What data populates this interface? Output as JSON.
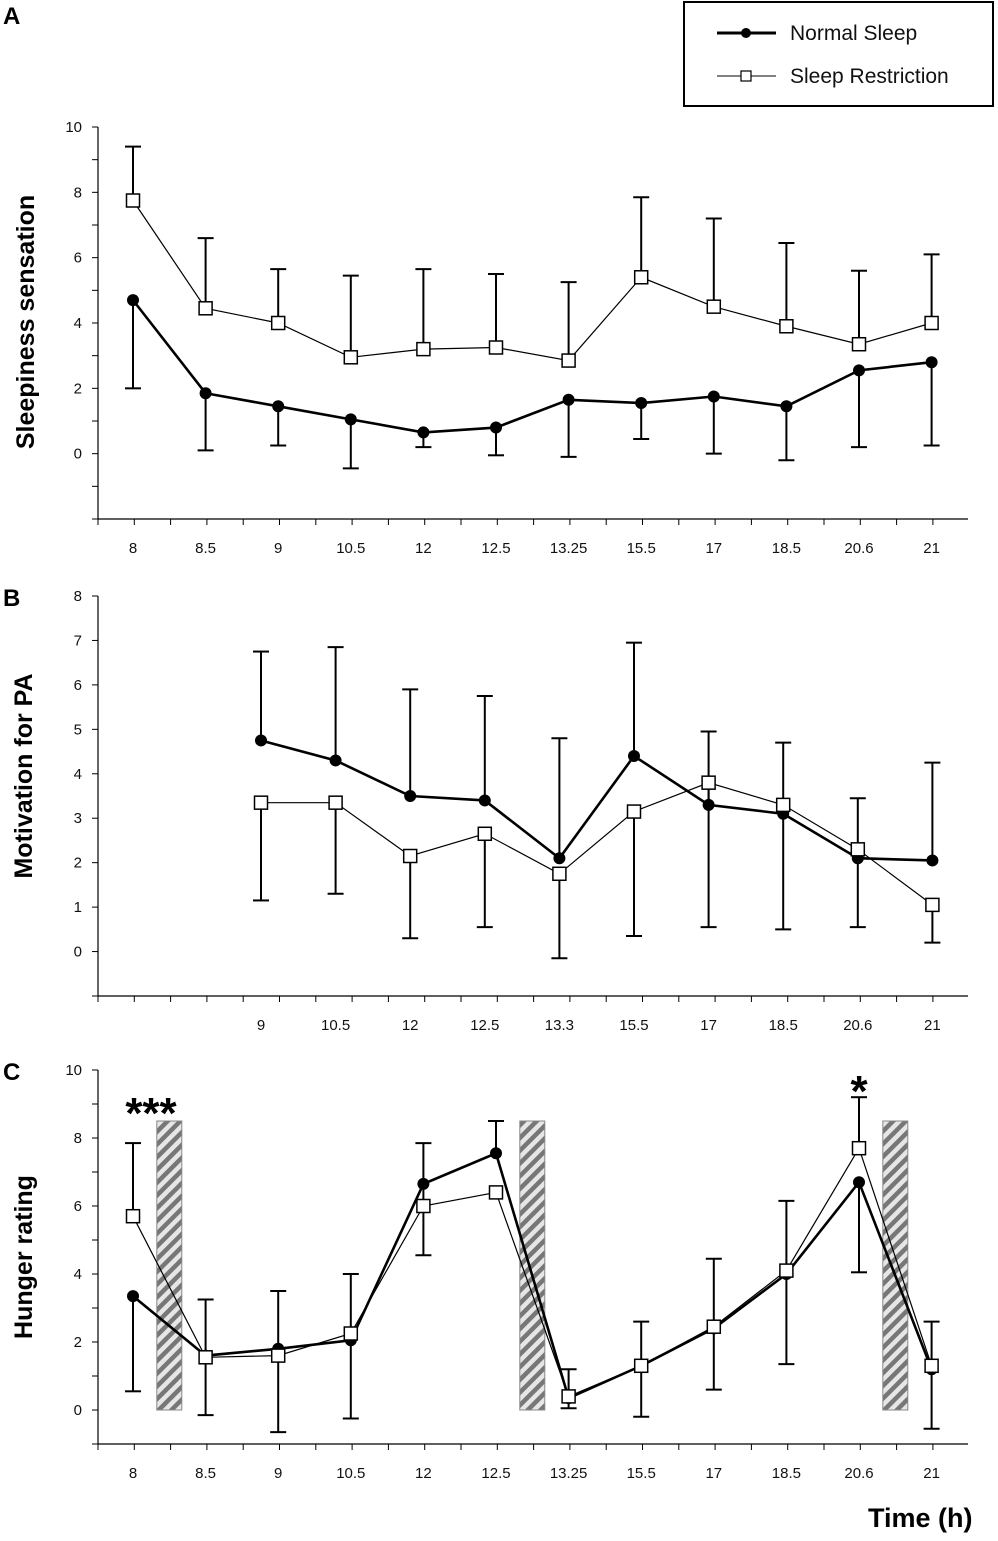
{
  "legend": {
    "normal_label": "Normal Sleep",
    "restriction_label": "Sleep Restriction"
  },
  "x_axis_title": "Time (h)",
  "chart_data": [
    {
      "type": "line",
      "panel": "A",
      "ylabel": "Sleepiness sensation",
      "xlabel": "",
      "categories": [
        "8",
        "8.5",
        "9",
        "10.5",
        "12",
        "12.5",
        "13.25",
        "15.5",
        "17",
        "18.5",
        "20.6",
        "21"
      ],
      "yticks": [
        0,
        2,
        4,
        6,
        8,
        10
      ],
      "ylim": [
        -2,
        10
      ],
      "series": [
        {
          "name": "Normal Sleep",
          "marker": "filled-circle",
          "values": [
            4.7,
            1.85,
            1.45,
            1.05,
            0.65,
            0.8,
            1.65,
            1.55,
            1.75,
            1.45,
            2.55,
            2.8
          ],
          "err_low": [
            2.0,
            0.1,
            0.25,
            -0.45,
            0.2,
            -0.05,
            -0.1,
            0.45,
            0.0,
            -0.2,
            0.2,
            0.25
          ],
          "err_high": [
            null,
            null,
            null,
            null,
            null,
            null,
            null,
            null,
            null,
            null,
            null,
            null
          ]
        },
        {
          "name": "Sleep Restriction",
          "marker": "open-square",
          "values": [
            7.75,
            4.45,
            4.0,
            2.95,
            3.2,
            3.25,
            2.85,
            5.4,
            4.5,
            3.9,
            3.35,
            4.0
          ],
          "err_low": [
            null,
            null,
            null,
            null,
            null,
            null,
            null,
            null,
            null,
            null,
            null,
            null
          ],
          "err_high": [
            9.4,
            6.6,
            5.65,
            5.45,
            5.65,
            5.5,
            5.25,
            7.85,
            7.2,
            6.45,
            5.6,
            6.1
          ]
        }
      ]
    },
    {
      "type": "line",
      "panel": "B",
      "ylabel": "Motivation for PA",
      "xlabel": "",
      "categories": [
        "9",
        "10.5",
        "12",
        "12.5",
        "13.3",
        "15.5",
        "17",
        "18.5",
        "20.6",
        "21"
      ],
      "yticks": [
        0,
        1,
        2,
        3,
        4,
        5,
        6,
        7,
        8
      ],
      "ylim": [
        -1,
        8
      ],
      "series": [
        {
          "name": "Normal Sleep",
          "marker": "filled-circle",
          "values": [
            4.75,
            4.3,
            3.5,
            3.4,
            2.1,
            4.4,
            3.3,
            3.1,
            2.1,
            2.05
          ],
          "err_low": [
            null,
            null,
            null,
            null,
            null,
            null,
            null,
            null,
            null,
            null
          ],
          "err_high": [
            6.75,
            6.85,
            5.9,
            5.75,
            4.8,
            6.95,
            4.95,
            4.7,
            3.45,
            4.25
          ]
        },
        {
          "name": "Sleep Restriction",
          "marker": "open-square",
          "values": [
            3.35,
            3.35,
            2.15,
            2.65,
            1.75,
            3.15,
            3.8,
            3.3,
            2.3,
            1.05
          ],
          "err_low": [
            1.15,
            1.3,
            0.3,
            0.55,
            -0.15,
            0.35,
            0.55,
            0.5,
            0.55,
            0.2
          ],
          "err_high": [
            null,
            null,
            null,
            null,
            null,
            null,
            null,
            null,
            null,
            null
          ]
        }
      ]
    },
    {
      "type": "line",
      "panel": "C",
      "ylabel": "Hunger rating",
      "xlabel": "Time (h)",
      "categories": [
        "8",
        "8.5",
        "9",
        "10.5",
        "12",
        "12.5",
        "13.25",
        "15.5",
        "17",
        "18.5",
        "20.6",
        "21"
      ],
      "yticks": [
        0,
        2,
        4,
        6,
        8,
        10
      ],
      "ylim": [
        -1,
        10
      ],
      "meal_bars": [
        {
          "between": [
            "8",
            "8.5"
          ],
          "height": 8.5
        },
        {
          "between": [
            "12.5",
            "13.25"
          ],
          "height": 8.5
        },
        {
          "between": [
            "20.6",
            "21"
          ],
          "height": 8.5
        }
      ],
      "annotations": [
        {
          "text": "***",
          "category": "8"
        },
        {
          "text": "*",
          "category": "20.6"
        }
      ],
      "series": [
        {
          "name": "Normal Sleep",
          "marker": "filled-circle",
          "values": [
            3.35,
            1.6,
            1.8,
            2.05,
            6.65,
            7.55,
            0.35,
            1.3,
            2.4,
            4.0,
            6.7,
            1.2
          ],
          "err_low": [
            0.55,
            -0.15,
            -0.65,
            -0.25,
            4.55,
            null,
            0.05,
            -0.2,
            0.6,
            1.35,
            4.05,
            -0.55
          ],
          "err_high": [
            null,
            3.25,
            3.5,
            4.0,
            7.85,
            8.5,
            1.2,
            2.6,
            4.45,
            null,
            null,
            2.6
          ]
        },
        {
          "name": "Sleep Restriction",
          "marker": "open-square",
          "values": [
            5.7,
            1.55,
            1.6,
            2.25,
            6.0,
            6.4,
            0.4,
            1.3,
            2.45,
            4.1,
            7.7,
            1.3
          ],
          "err_low": [
            null,
            null,
            null,
            null,
            null,
            null,
            null,
            null,
            null,
            null,
            null,
            null
          ],
          "err_high": [
            7.85,
            null,
            null,
            null,
            null,
            null,
            null,
            null,
            null,
            6.15,
            9.2,
            null
          ]
        }
      ]
    }
  ]
}
